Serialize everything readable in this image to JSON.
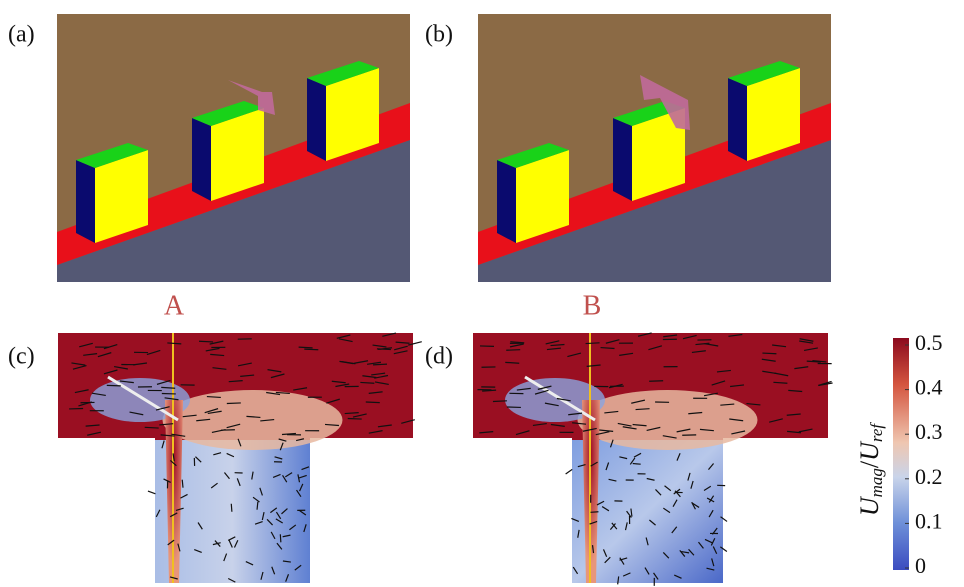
{
  "panels": {
    "a": "(a)",
    "b": "(b)",
    "c": "(c)",
    "d": "(d)"
  },
  "section_labels": {
    "c": "A",
    "d": "B"
  },
  "colorbar": {
    "label": {
      "numerator": {
        "symbol": "U",
        "subscript": "mag"
      },
      "denominator": {
        "symbol": "U",
        "subscript": "ref"
      }
    },
    "lim": [
      0,
      0.5
    ],
    "ticks": [
      0.5,
      0.4,
      0.3,
      0.2,
      0.1,
      0
    ]
  }
}
